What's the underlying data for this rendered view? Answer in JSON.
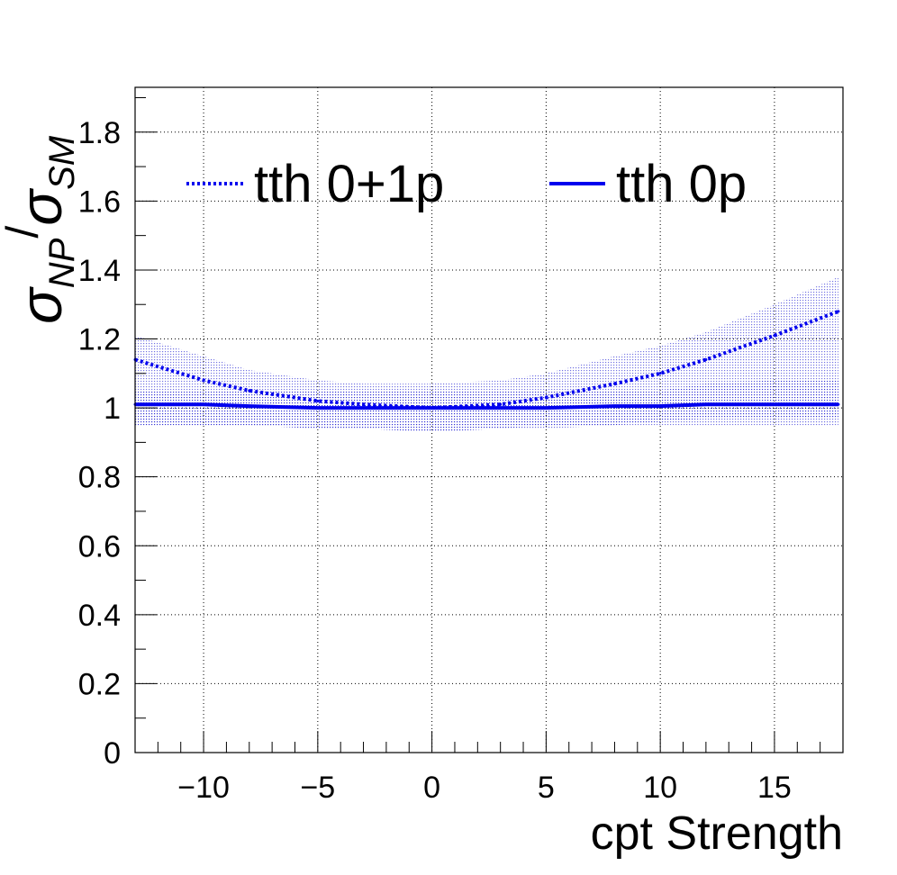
{
  "chart_data": {
    "type": "line",
    "xlabel": "cpt Strength",
    "ylabel": {
      "sym1": "σ",
      "sub1": "NP",
      "slash": "/",
      "sym2": "σ",
      "sub2": "SM"
    },
    "xlim": [
      -13,
      18
    ],
    "ylim": [
      0,
      1.93
    ],
    "x_ticks": [
      -10,
      -5,
      0,
      5,
      10,
      15
    ],
    "x_tick_labels": [
      "−10",
      "−5",
      "0",
      "5",
      "10",
      "15"
    ],
    "y_ticks": [
      0,
      0.2,
      0.4,
      0.6,
      0.8,
      1,
      1.2,
      1.4,
      1.6,
      1.8
    ],
    "y_tick_labels": [
      "0",
      "0.2",
      "0.4",
      "0.6",
      "0.8",
      "1",
      "1.2",
      "1.4",
      "1.6",
      "1.8"
    ],
    "grid": true,
    "legend_position": "top",
    "colors": {
      "series": "#0000ee",
      "band": "#0000cc"
    },
    "x": [
      -13,
      -10,
      -8,
      -5,
      -3,
      0,
      3,
      5,
      8,
      10,
      12,
      15,
      17.8
    ],
    "series": [
      {
        "name": "tth 0+1p",
        "style": "dotted",
        "values": [
          1.14,
          1.08,
          1.05,
          1.02,
          1.01,
          1.0,
          1.01,
          1.03,
          1.07,
          1.1,
          1.14,
          1.21,
          1.28
        ],
        "band_upper": [
          1.21,
          1.15,
          1.11,
          1.08,
          1.07,
          1.07,
          1.08,
          1.1,
          1.15,
          1.18,
          1.22,
          1.3,
          1.38
        ],
        "band_lower": [
          0.95,
          0.95,
          0.95,
          0.94,
          0.94,
          0.93,
          0.94,
          0.95,
          0.95,
          0.96,
          0.97,
          0.97,
          0.97
        ]
      },
      {
        "name": "tth 0p",
        "style": "solid",
        "values": [
          1.01,
          1.01,
          1.005,
          1.0,
          1.0,
          1.0,
          1.0,
          1.0,
          1.005,
          1.005,
          1.01,
          1.01,
          1.01
        ],
        "band_upper": [
          1.05,
          1.05,
          1.05,
          1.05,
          1.05,
          1.05,
          1.05,
          1.05,
          1.05,
          1.05,
          1.07,
          1.08,
          1.08
        ],
        "band_lower": [
          0.95,
          0.95,
          0.95,
          0.94,
          0.94,
          0.93,
          0.94,
          0.94,
          0.95,
          0.95,
          0.95,
          0.95,
          0.95
        ]
      }
    ]
  }
}
